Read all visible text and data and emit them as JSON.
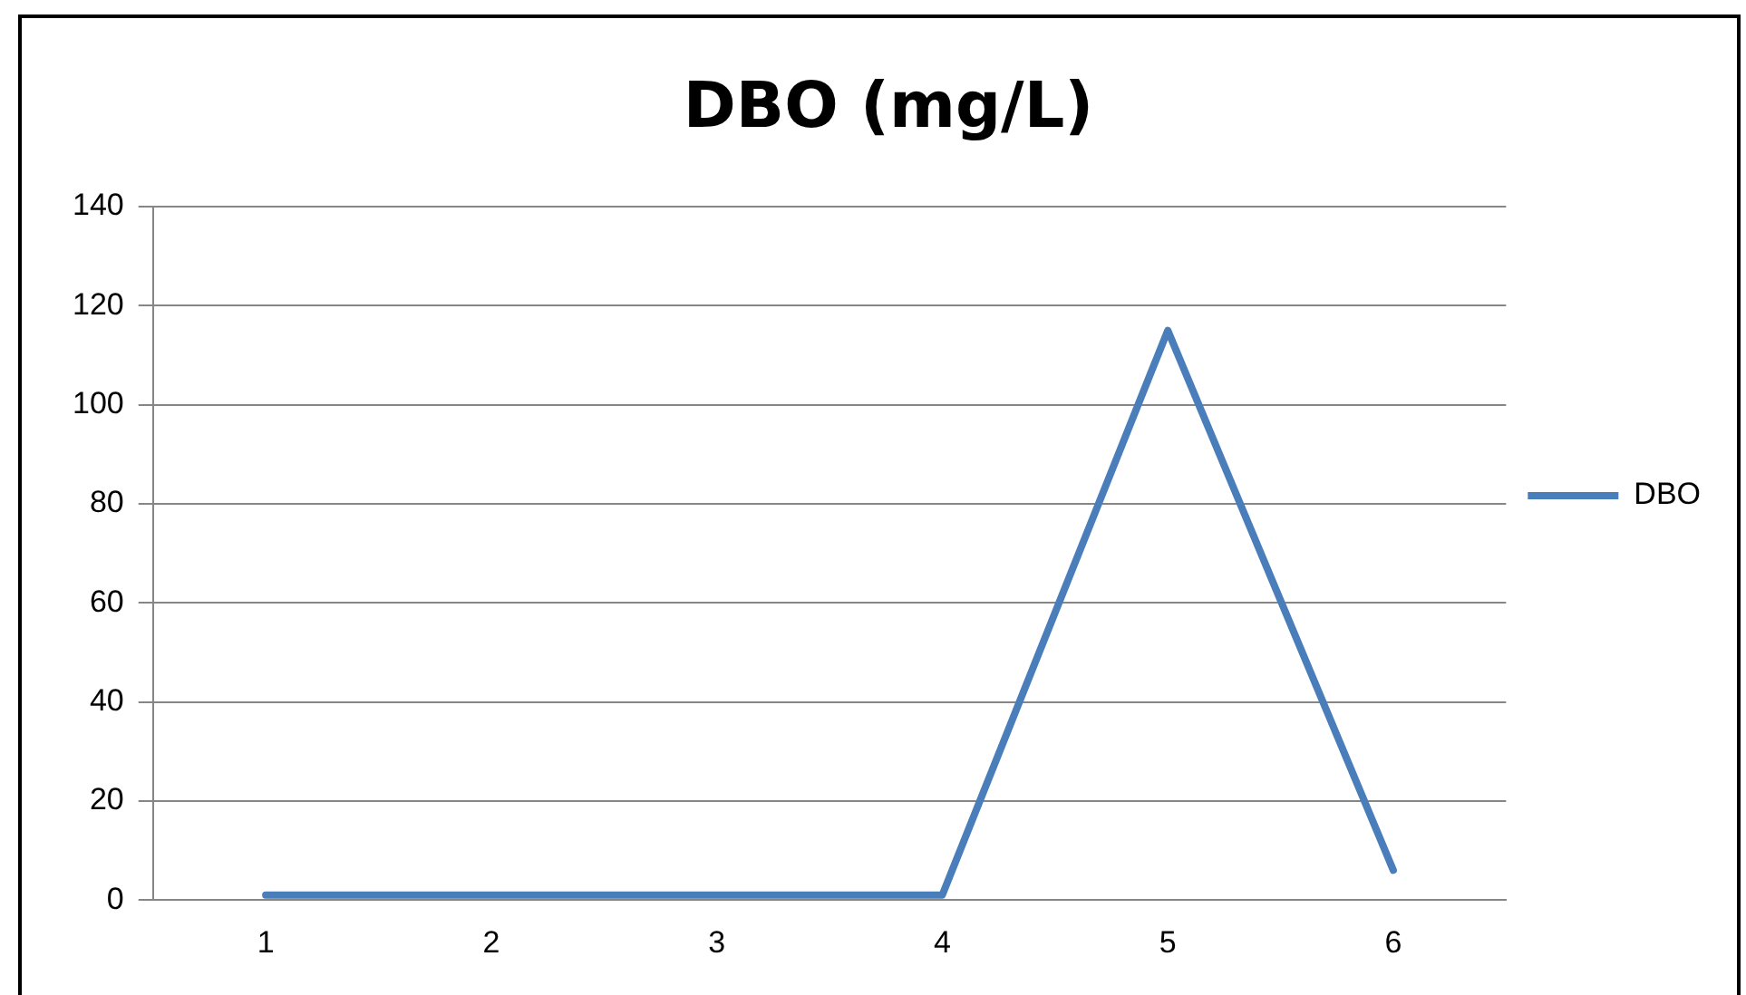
{
  "chart_data": {
    "type": "line",
    "title": "DBO (mg/L)",
    "categories": [
      "1",
      "2",
      "3",
      "4",
      "5",
      "6"
    ],
    "series": [
      {
        "name": "DBO",
        "color": "#4a7ebb",
        "values": [
          1,
          1,
          1,
          1,
          115,
          6
        ]
      }
    ],
    "ylim": [
      0,
      140
    ],
    "yticks": [
      0,
      20,
      40,
      60,
      80,
      100,
      120,
      140
    ],
    "grid": "y",
    "legend": "right",
    "marker": "none",
    "line_style": "solid"
  }
}
